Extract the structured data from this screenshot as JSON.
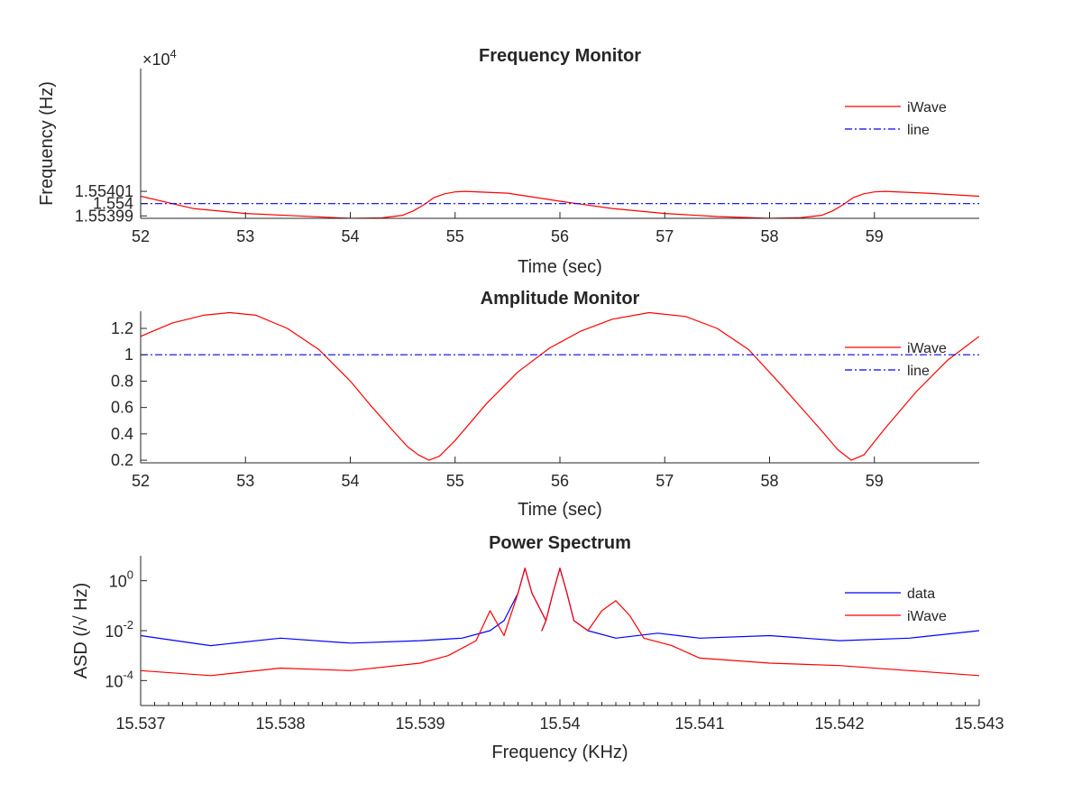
{
  "colors": {
    "iwave": "#ff0000",
    "line": "#0000ff",
    "data": "#0000ff",
    "axis": "#262626"
  },
  "chart_data": [
    {
      "id": "freq",
      "type": "line",
      "title": "Frequency Monitor",
      "xlabel": "Time (sec)",
      "ylabel": "Frequency (Hz)",
      "exponent": {
        "base": "×10",
        "power": "4"
      },
      "xlim": [
        52,
        60
      ],
      "ylim": [
        15539.88,
        15541.1
      ],
      "xticks": [
        52,
        53,
        54,
        55,
        56,
        57,
        58,
        59
      ],
      "xtick_labels": [
        "52",
        "53",
        "54",
        "55",
        "56",
        "57",
        "58",
        "59"
      ],
      "yticks": [
        15539.9,
        15540.0,
        15540.1
      ],
      "ytick_labels": [
        "1.55399",
        "1.554",
        "1.55401"
      ],
      "legend": [
        "iWave",
        "line"
      ],
      "series": [
        {
          "name": "iWave",
          "color": "#ff0000",
          "dash": "",
          "x": [
            52.0,
            52.5,
            53.0,
            53.5,
            54.0,
            54.3,
            54.5,
            54.6,
            54.7,
            54.8,
            54.9,
            55.0,
            55.1,
            55.5,
            56.0,
            56.5,
            57.0,
            57.5,
            58.0,
            58.3,
            58.5,
            58.6,
            58.7,
            58.8,
            58.9,
            59.0,
            59.1,
            59.5,
            60.0
          ],
          "y": [
            15540.06,
            15539.96,
            15539.92,
            15539.9,
            15539.88,
            15539.884,
            15539.905,
            15539.94,
            15539.99,
            15540.05,
            15540.08,
            15540.095,
            15540.1,
            15540.085,
            15540.02,
            15539.96,
            15539.92,
            15539.895,
            15539.88,
            15539.886,
            15539.905,
            15539.94,
            15539.99,
            15540.05,
            15540.08,
            15540.095,
            15540.1,
            15540.085,
            15540.06
          ]
        },
        {
          "name": "line",
          "color": "#0000ff",
          "dash": "8,3,2,3",
          "x": [
            52,
            60
          ],
          "y": [
            15540.0,
            15540.0
          ]
        }
      ]
    },
    {
      "id": "amp",
      "type": "line",
      "title": "Amplitude Monitor",
      "xlabel": "Time (sec)",
      "ylabel": "",
      "xlim": [
        52,
        60
      ],
      "ylim": [
        0.18,
        1.33
      ],
      "xticks": [
        52,
        53,
        54,
        55,
        56,
        57,
        58,
        59
      ],
      "xtick_labels": [
        "52",
        "53",
        "54",
        "55",
        "56",
        "57",
        "58",
        "59"
      ],
      "yticks": [
        0.2,
        0.4,
        0.6,
        0.8,
        1.0,
        1.2
      ],
      "ytick_labels": [
        "0.2",
        "0.4",
        "0.6",
        "0.8",
        "1",
        "1.2"
      ],
      "legend": [
        "iWave",
        "line"
      ],
      "series": [
        {
          "name": "iWave",
          "color": "#ff0000",
          "dash": "",
          "x": [
            52.0,
            52.3,
            52.6,
            52.85,
            53.1,
            53.4,
            53.7,
            54.0,
            54.2,
            54.4,
            54.55,
            54.65,
            54.75,
            54.85,
            55.0,
            55.3,
            55.6,
            55.9,
            56.2,
            56.5,
            56.85,
            57.2,
            57.5,
            57.8,
            58.1,
            58.3,
            58.5,
            58.65,
            58.78,
            58.9,
            59.1,
            59.4,
            59.7,
            60.0
          ],
          "y": [
            1.14,
            1.24,
            1.3,
            1.32,
            1.3,
            1.2,
            1.04,
            0.8,
            0.61,
            0.43,
            0.3,
            0.24,
            0.2,
            0.23,
            0.35,
            0.63,
            0.87,
            1.05,
            1.18,
            1.27,
            1.32,
            1.29,
            1.2,
            1.04,
            0.78,
            0.6,
            0.42,
            0.28,
            0.2,
            0.24,
            0.44,
            0.72,
            0.96,
            1.14
          ]
        },
        {
          "name": "line",
          "color": "#0000ff",
          "dash": "8,3,2,3",
          "x": [
            52,
            60
          ],
          "y": [
            1.0,
            1.0
          ]
        }
      ]
    },
    {
      "id": "psd",
      "type": "line",
      "title": "Power Spectrum",
      "xlabel": "Frequency (KHz)",
      "ylabel": "ASD (/√ Hz)",
      "yscale": "log",
      "xlim": [
        15.537,
        15.543
      ],
      "ylim_log10": [
        -5.0,
        1.0
      ],
      "xticks": [
        15.537,
        15.538,
        15.539,
        15.54,
        15.541,
        15.542,
        15.543
      ],
      "xtick_labels": [
        "15.537",
        "15.538",
        "15.539",
        "15.54",
        "15.541",
        "15.542",
        "15.543"
      ],
      "yticks_log10": [
        -4,
        -2,
        0
      ],
      "ytick_labels": [
        {
          "base": "10",
          "exp": "-4"
        },
        {
          "base": "10",
          "exp": "-2"
        },
        {
          "base": "10",
          "exp": "0"
        }
      ],
      "legend": [
        "data",
        "iWave"
      ],
      "series": [
        {
          "name": "data",
          "color": "#0000ff",
          "dash": "",
          "x": [
            15.537,
            15.5375,
            15.538,
            15.5385,
            15.539,
            15.5393,
            15.5395,
            15.5396,
            15.5397,
            15.53975,
            15.5398,
            15.5399,
            15.53987,
            15.5399,
            15.53995,
            15.54,
            15.54005,
            15.5401,
            15.5402,
            15.5404,
            15.5407,
            15.541,
            15.5415,
            15.542,
            15.5425,
            15.543
          ],
          "log10": [
            -2.2,
            -2.6,
            -2.3,
            -2.5,
            -2.4,
            -2.3,
            -2.0,
            -1.6,
            -0.5,
            0.5,
            -0.5,
            -1.6,
            -2.0,
            -1.6,
            -0.5,
            0.5,
            -0.5,
            -1.6,
            -2.0,
            -2.3,
            -2.1,
            -2.3,
            -2.2,
            -2.4,
            -2.3,
            -2.0
          ]
        },
        {
          "name": "iWave",
          "color": "#ff0000",
          "dash": "",
          "x": [
            15.537,
            15.5375,
            15.538,
            15.5385,
            15.539,
            15.5392,
            15.5394,
            15.5395,
            15.5396,
            15.5397,
            15.53975,
            15.5398,
            15.5399,
            15.53987,
            15.5399,
            15.53995,
            15.54,
            15.54005,
            15.5401,
            15.5402,
            15.5403,
            15.5404,
            15.5405,
            15.5406,
            15.5408,
            15.541,
            15.5415,
            15.542,
            15.5425,
            15.543
          ],
          "log10": [
            -3.6,
            -3.8,
            -3.5,
            -3.6,
            -3.3,
            -3.0,
            -2.4,
            -1.2,
            -2.2,
            -0.5,
            0.5,
            -0.5,
            -1.6,
            -2.0,
            -1.6,
            -0.5,
            0.5,
            -0.5,
            -1.6,
            -2.0,
            -1.2,
            -0.8,
            -1.4,
            -2.3,
            -2.6,
            -3.1,
            -3.3,
            -3.4,
            -3.6,
            -3.8
          ]
        }
      ]
    }
  ]
}
